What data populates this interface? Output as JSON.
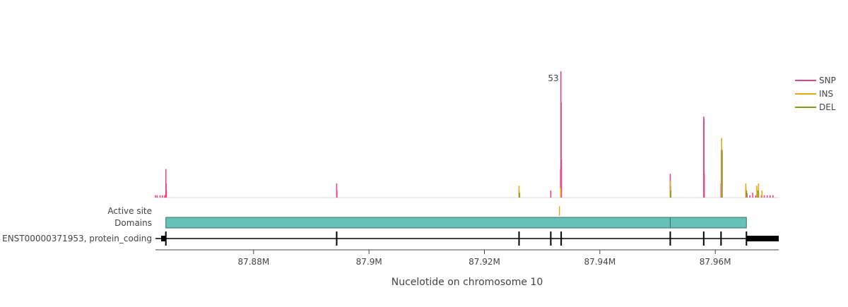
{
  "chart_data": {
    "type": "line",
    "title": "",
    "xlabel": "Nucelotide on chromosome 10",
    "ylabel": "",
    "xlim": [
      87863000,
      87971000
    ],
    "ylim": [
      0,
      53
    ],
    "x_ticks": [
      {
        "value": 87880000,
        "label": "87.88M"
      },
      {
        "value": 87900000,
        "label": "87.9M"
      },
      {
        "value": 87920000,
        "label": "87.92M"
      },
      {
        "value": 87940000,
        "label": "87.94M"
      },
      {
        "value": 87960000,
        "label": "87.96M"
      }
    ],
    "legend": {
      "position": "right"
    },
    "series": [
      {
        "name": "SNP",
        "color": "#e8448e",
        "points": [
          [
            87863000,
            1
          ],
          [
            87863300,
            1
          ],
          [
            87863800,
            1
          ],
          [
            87864200,
            1
          ],
          [
            87864600,
            1
          ],
          [
            87864800,
            12
          ],
          [
            87864850,
            6
          ],
          [
            87864900,
            3
          ],
          [
            87894400,
            6
          ],
          [
            87894450,
            3
          ],
          [
            87926000,
            3
          ],
          [
            87931500,
            3
          ],
          [
            87933200,
            12
          ],
          [
            87933250,
            53
          ],
          [
            87933300,
            40
          ],
          [
            87933350,
            16
          ],
          [
            87952200,
            10
          ],
          [
            87952250,
            5
          ],
          [
            87958000,
            34
          ],
          [
            87958050,
            33
          ],
          [
            87958100,
            10
          ],
          [
            87961000,
            6
          ],
          [
            87961050,
            20
          ],
          [
            87961100,
            7
          ],
          [
            87965300,
            4
          ],
          [
            87965500,
            2
          ],
          [
            87966000,
            1
          ],
          [
            87966500,
            2
          ],
          [
            87967000,
            1
          ],
          [
            87967500,
            2
          ],
          [
            87968000,
            1
          ],
          [
            87968500,
            1
          ],
          [
            87969000,
            1
          ],
          [
            87969500,
            1
          ],
          [
            87970000,
            1
          ]
        ]
      },
      {
        "name": "INS",
        "color": "#e6a817",
        "points": [
          [
            87926000,
            5
          ],
          [
            87933200,
            4
          ],
          [
            87952200,
            7
          ],
          [
            87961100,
            25
          ],
          [
            87965300,
            6
          ],
          [
            87967200,
            5
          ],
          [
            87967500,
            6
          ],
          [
            87968100,
            3
          ]
        ]
      },
      {
        "name": "DEL",
        "color": "#7ba320",
        "points": [
          [
            87926100,
            2
          ],
          [
            87952300,
            3
          ],
          [
            87961200,
            20
          ],
          [
            87965400,
            3
          ],
          [
            87967400,
            3
          ]
        ]
      }
    ],
    "annotations": [
      {
        "text": "53",
        "x": 87933250,
        "y": 53
      }
    ],
    "tracks": [
      {
        "label": "Active site",
        "color": "#e6a817",
        "features": [
          {
            "start": 87933000,
            "end": 87933050
          }
        ]
      },
      {
        "label": "Domains",
        "color": "#66c2b8",
        "features": [
          {
            "start": 87864800,
            "end": 87952200
          },
          {
            "start": 87952200,
            "end": 87965400
          }
        ]
      },
      {
        "label": "ENST00000371953, protein_coding",
        "color": "#000000",
        "utr5": {
          "start": 87863000,
          "end": 87864800
        },
        "utr3": {
          "start": 87965400,
          "end": 87971000
        },
        "exons": [
          87864800,
          87894400,
          87926000,
          87931500,
          87933300,
          87952200,
          87958000,
          87961000,
          87965400
        ]
      }
    ]
  }
}
